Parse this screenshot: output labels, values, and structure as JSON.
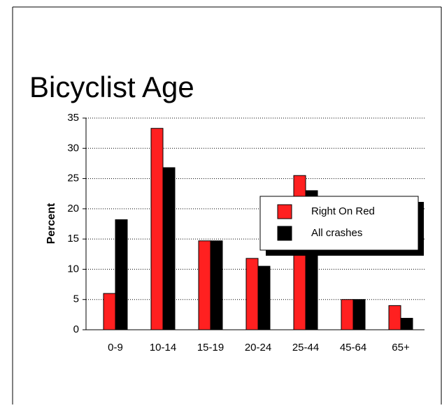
{
  "chart_data": {
    "type": "bar",
    "title": "Bicyclist Age",
    "y_label": "Percent",
    "categories": [
      "0-9",
      "10-14",
      "15-19",
      "20-24",
      "25-44",
      "45-64",
      "65+"
    ],
    "series": [
      {
        "name": "Right On Red",
        "color": "#ff2020",
        "values": [
          6,
          33.3,
          14.7,
          11.8,
          25.5,
          5,
          4
        ]
      },
      {
        "name": "All crashes",
        "color": "#000000",
        "values": [
          18.2,
          26.8,
          14.7,
          10.5,
          23,
          5,
          1.9
        ]
      }
    ],
    "ylim": [
      0,
      35
    ],
    "yticks": [
      0,
      5,
      10,
      15,
      20,
      25,
      30,
      35
    ],
    "grid": true,
    "legend": "right"
  }
}
